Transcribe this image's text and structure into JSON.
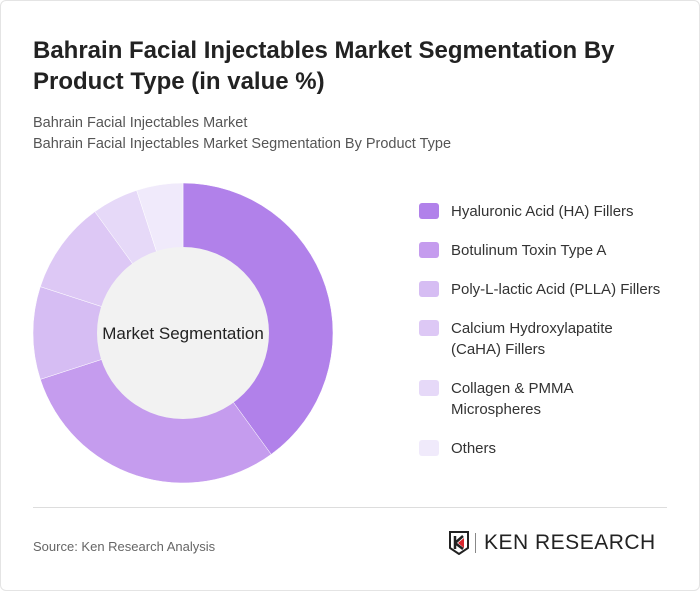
{
  "title": "Bahrain Facial Injectables Market Segmentation By Product Type (in value %)",
  "subtitle1": "Bahrain Facial Injectables Market",
  "subtitle2": "Bahrain Facial Injectables Market Segmentation By Product Type",
  "source": "Source: Ken Research Analysis",
  "logo": "KEN RESEARCH",
  "chart_data": {
    "type": "pie",
    "variant": "donut",
    "center_label": "Market Segmentation",
    "legend_position": "right",
    "categories": [
      "Hyaluronic Acid (HA) Fillers",
      "Botulinum Toxin Type A",
      "Poly-L-lactic Acid (PLLA) Fillers",
      "Calcium Hydroxylapatite (CaHA) Fillers",
      "Collagen & PMMA Microspheres",
      "Others"
    ],
    "values": [
      40,
      30,
      10,
      10,
      5,
      5
    ],
    "colors": [
      "#b181ea",
      "#c59cee",
      "#d6bdf3",
      "#ddc8f5",
      "#e6d9f8",
      "#f0eafb"
    ]
  }
}
